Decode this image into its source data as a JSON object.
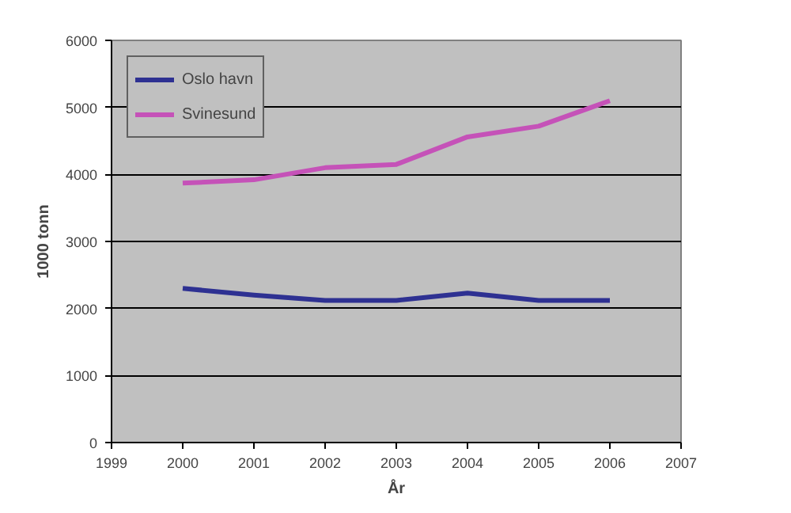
{
  "chart_data": {
    "type": "line",
    "xlabel": "År",
    "ylabel": "1000 tonn",
    "x": [
      2000,
      2001,
      2002,
      2003,
      2004,
      2005,
      2006
    ],
    "series": [
      {
        "name": "Oslo havn",
        "color": "#2e3192",
        "values": [
          2300,
          2200,
          2120,
          2120,
          2230,
          2120,
          2120
        ]
      },
      {
        "name": "Svinesund",
        "color": "#c552b8",
        "values": [
          3870,
          3920,
          4100,
          4150,
          4560,
          4720,
          5100
        ]
      }
    ],
    "xlim": [
      1999,
      2007
    ],
    "xticks": [
      1999,
      2000,
      2001,
      2002,
      2003,
      2004,
      2005,
      2006,
      2007
    ],
    "ylim": [
      0,
      6000
    ],
    "yticks": [
      0,
      1000,
      2000,
      3000,
      4000,
      5000,
      6000
    ],
    "grid": "y",
    "legend": "top left",
    "marker": "none",
    "line_style": "solid"
  }
}
